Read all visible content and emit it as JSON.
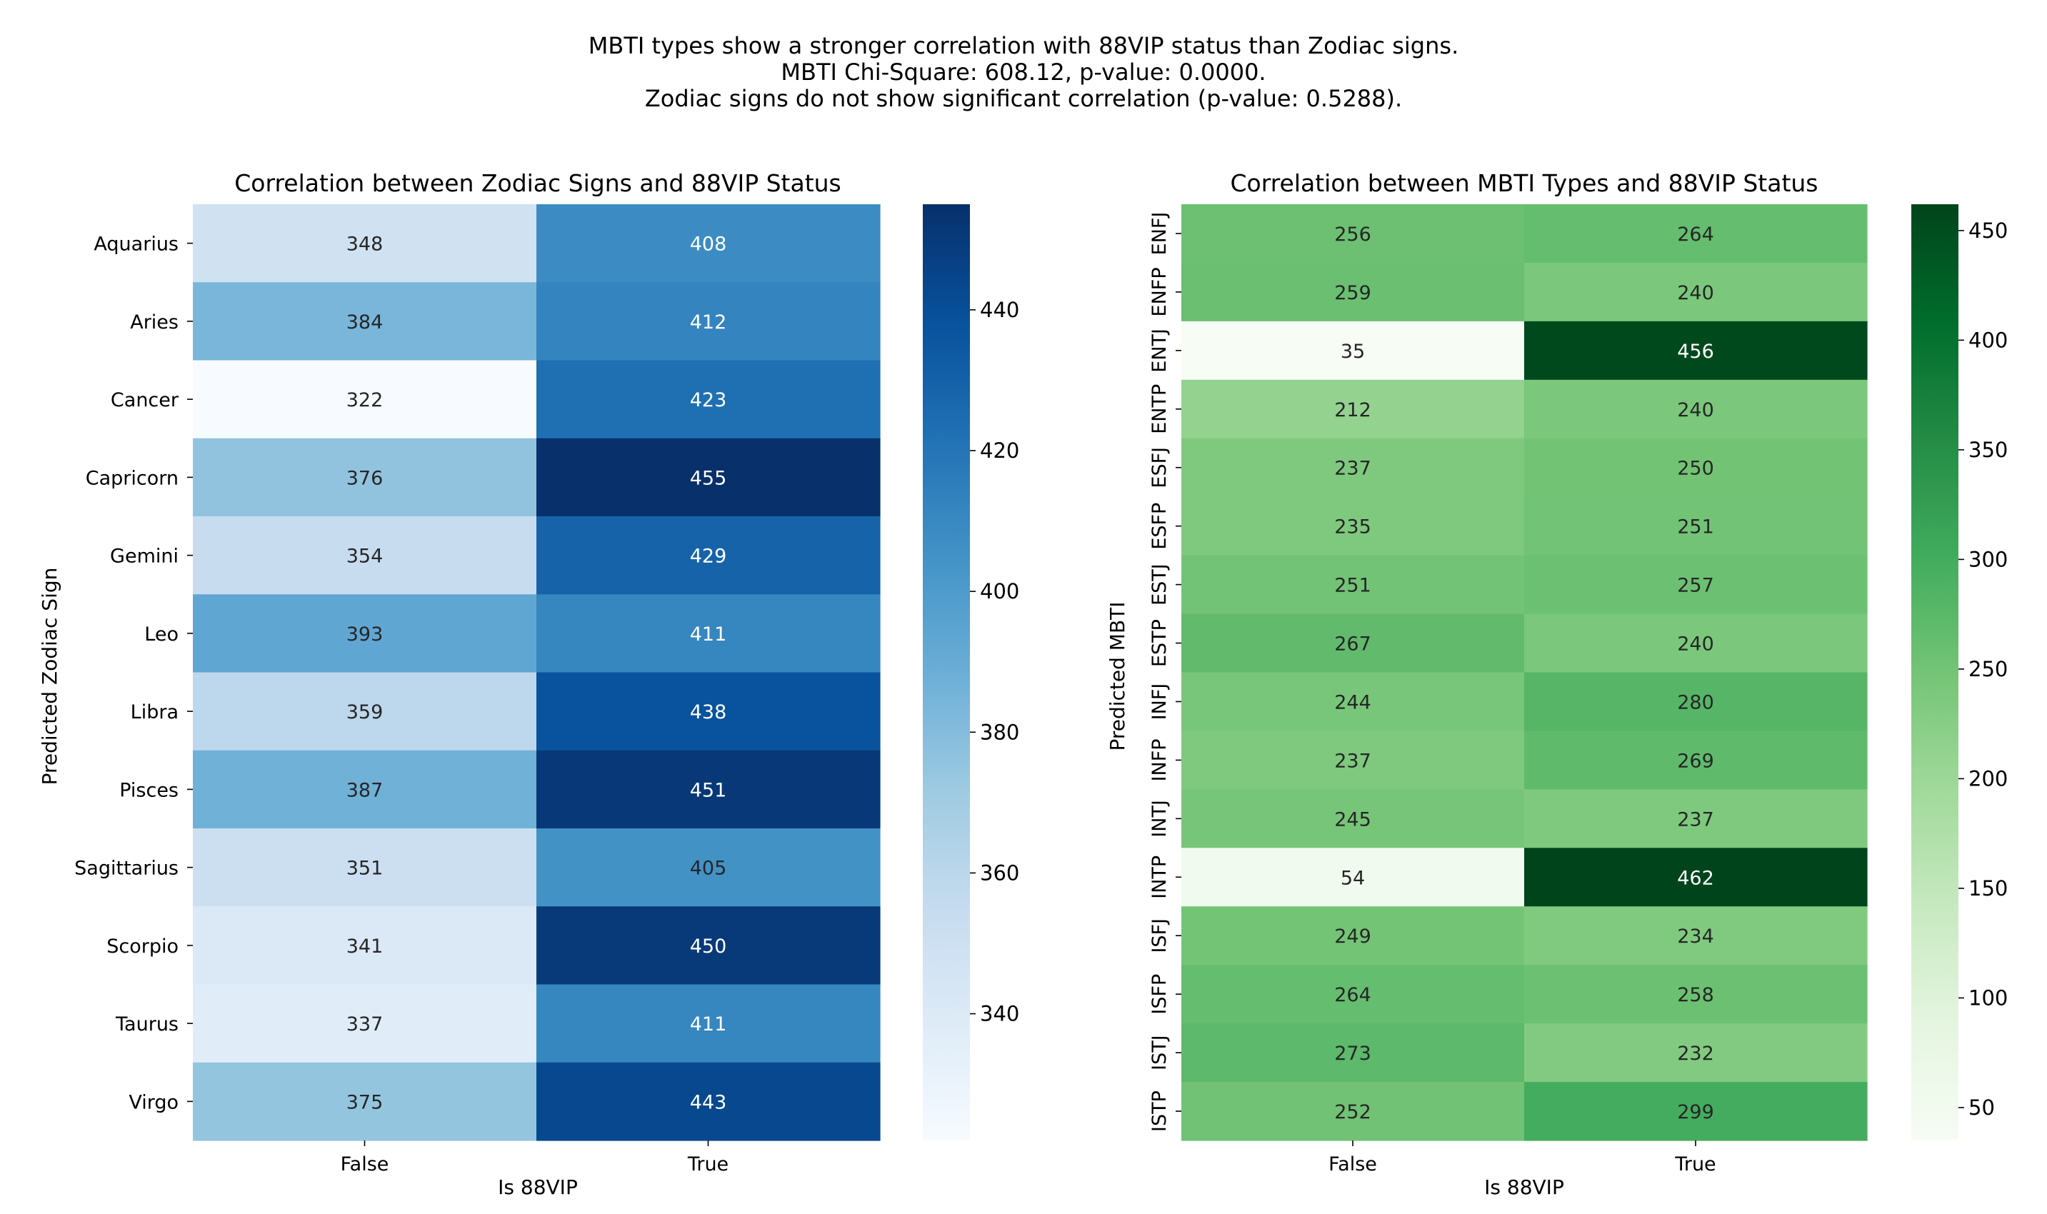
{
  "suptitle": [
    "MBTI types show a stronger correlation with 88VIP status than Zodiac signs.",
    "MBTI Chi-Square: 608.12, p-value: 0.0000.",
    "Zodiac signs do not show significant correlation (p-value: 0.5288)."
  ],
  "chart_data": [
    {
      "type": "heatmap",
      "title": "Correlation between Zodiac Signs and 88VIP Status",
      "xlabel": "Is 88VIP",
      "ylabel": "Predicted Zodiac Sign",
      "colormap": "Blues",
      "colors": {
        "low": "#f7fbff",
        "high": "#08306b"
      },
      "color_range": [
        322,
        455
      ],
      "colorbar_ticks": [
        340,
        360,
        380,
        400,
        420,
        440
      ],
      "x_categories": [
        "False",
        "True"
      ],
      "y_categories": [
        "Aquarius",
        "Aries",
        "Cancer",
        "Capricorn",
        "Gemini",
        "Leo",
        "Libra",
        "Pisces",
        "Sagittarius",
        "Scorpio",
        "Taurus",
        "Virgo"
      ],
      "values": [
        [
          348,
          408
        ],
        [
          384,
          412
        ],
        [
          322,
          423
        ],
        [
          376,
          455
        ],
        [
          354,
          429
        ],
        [
          393,
          411
        ],
        [
          359,
          438
        ],
        [
          387,
          451
        ],
        [
          351,
          405
        ],
        [
          341,
          450
        ],
        [
          337,
          411
        ],
        [
          375,
          443
        ]
      ]
    },
    {
      "type": "heatmap",
      "title": "Correlation between MBTI Types and 88VIP Status",
      "xlabel": "Is 88VIP",
      "ylabel": "Predicted MBTI",
      "colormap": "Greens",
      "colors": {
        "low": "#f7fcf5",
        "high": "#00441b"
      },
      "color_range": [
        35,
        462
      ],
      "colorbar_ticks": [
        50,
        100,
        150,
        200,
        250,
        300,
        350,
        400,
        450
      ],
      "x_categories": [
        "False",
        "True"
      ],
      "y_categories": [
        "ENFJ",
        "ENFP",
        "ENTJ",
        "ENTP",
        "ESFJ",
        "ESFP",
        "ESTJ",
        "ESTP",
        "INFJ",
        "INFP",
        "INTJ",
        "INTP",
        "ISFJ",
        "ISFP",
        "ISTJ",
        "ISTP"
      ],
      "values": [
        [
          256,
          264
        ],
        [
          259,
          240
        ],
        [
          35,
          456
        ],
        [
          212,
          240
        ],
        [
          237,
          250
        ],
        [
          235,
          251
        ],
        [
          251,
          257
        ],
        [
          267,
          240
        ],
        [
          244,
          280
        ],
        [
          237,
          269
        ],
        [
          245,
          237
        ],
        [
          54,
          462
        ],
        [
          249,
          234
        ],
        [
          264,
          258
        ],
        [
          273,
          232
        ],
        [
          252,
          299
        ]
      ]
    }
  ]
}
